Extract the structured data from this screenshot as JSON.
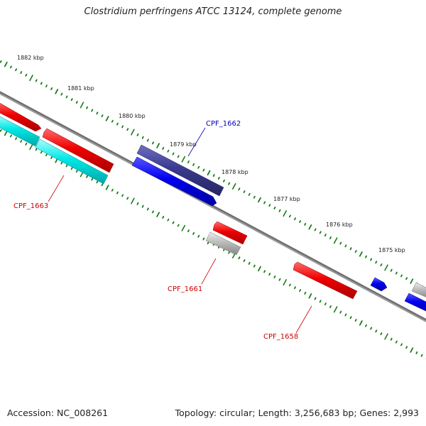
{
  "title": "Clostridium perfringens ATCC 13124, complete genome",
  "footer": {
    "accession": "Accession: NC_008261",
    "summary": "Topology: circular; Length: 3,256,683 bp; Genes: 2,993"
  },
  "ruler": {
    "tick_labels": [
      "1882 kbp",
      "1881 kbp",
      "1880 kbp",
      "1879 kbp",
      "1878 kbp",
      "1877 kbp",
      "1876 kbp",
      "1875 kbp"
    ],
    "tick_color": "#1a7a1a"
  },
  "genes": [
    {
      "label": "CPF_1663",
      "color": "#cc0000"
    },
    {
      "label": "CPF_1662",
      "color": "#0000bb"
    },
    {
      "label": "CPF_1661",
      "color": "#cc0000"
    },
    {
      "label": "CPF_1658",
      "color": "#cc0000"
    }
  ],
  "colors": {
    "backbone": "#777777",
    "feature_red": "#ee0000",
    "feature_blue": "#0000ee",
    "feature_cyan": "#00dddd",
    "feature_navy": "#3a3a90",
    "feature_gray": "#bbbbbb"
  }
}
